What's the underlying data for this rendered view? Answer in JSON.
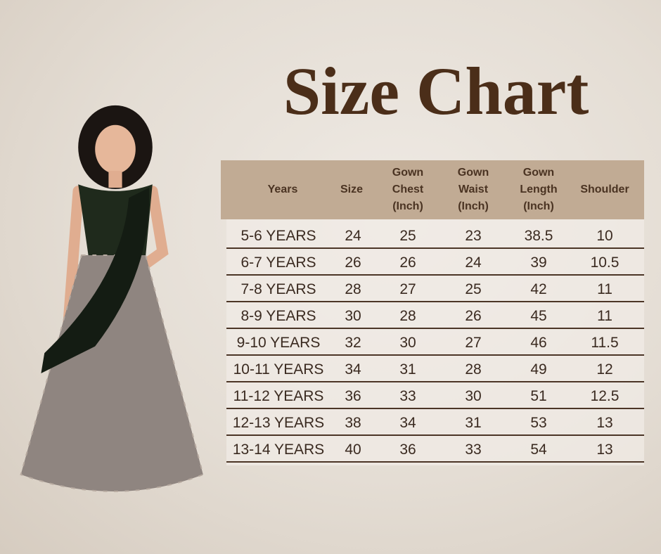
{
  "title": "Size Chart",
  "colors": {
    "title": "#4b2e19",
    "header_bg": "#c1ab94",
    "row_divider": "#4b3526"
  },
  "image": {
    "subject": "girl-in-gown-photo"
  },
  "table": {
    "headers": [
      "Years",
      "Size",
      "Gown\nChest\n(Inch)",
      "Gown\nWaist\n(Inch)",
      "Gown\nLength\n(Inch)",
      "Shoulder"
    ],
    "rows": [
      [
        "5-6 YEARS",
        "24",
        "25",
        "23",
        "38.5",
        "10"
      ],
      [
        "6-7 YEARS",
        "26",
        "26",
        "24",
        "39",
        "10.5"
      ],
      [
        "7-8 YEARS",
        "28",
        "27",
        "25",
        "42",
        "11"
      ],
      [
        "8-9 YEARS",
        "30",
        "28",
        "26",
        "45",
        "11"
      ],
      [
        "9-10 YEARS",
        "32",
        "30",
        "27",
        "46",
        "11.5"
      ],
      [
        "10-11 YEARS",
        "34",
        "31",
        "28",
        "49",
        "12"
      ],
      [
        "11-12 YEARS",
        "36",
        "33",
        "30",
        "51",
        "12.5"
      ],
      [
        "12-13 YEARS",
        "38",
        "34",
        "31",
        "53",
        "13"
      ],
      [
        "13-14 YEARS",
        "40",
        "36",
        "33",
        "54",
        "13"
      ]
    ]
  }
}
